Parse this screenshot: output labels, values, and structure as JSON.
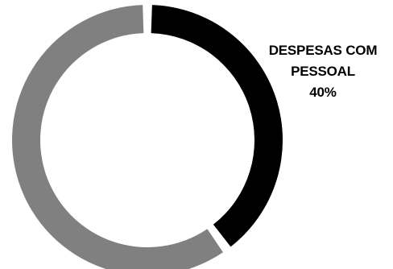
{
  "chart_data": {
    "type": "pie",
    "style": "donut",
    "slices": [
      {
        "label": "DESPESAS COM PESSOAL",
        "value": 40,
        "color": "#000000"
      },
      {
        "label": "",
        "value": 60,
        "color": "#808080"
      }
    ],
    "data_labels": [
      {
        "line1": "DESPESAS COM",
        "line2": "PESSOAL",
        "value_text": "40%"
      }
    ],
    "title": "",
    "legend": "none"
  }
}
